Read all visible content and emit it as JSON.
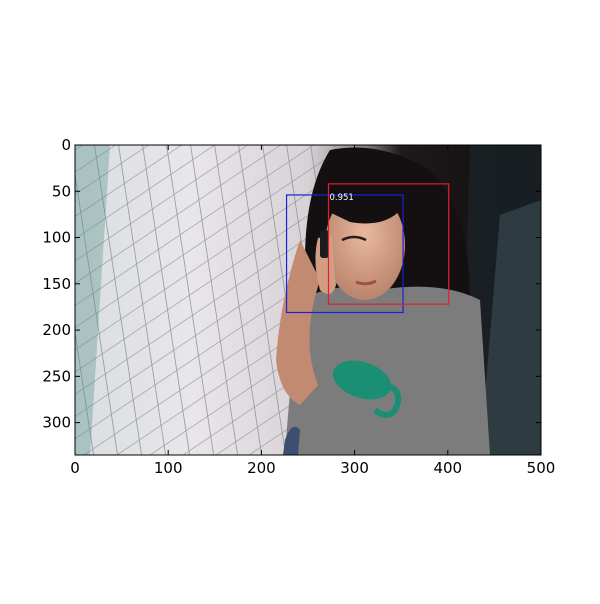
{
  "chart_data": {
    "type": "image_detection",
    "title": "",
    "xlabel": "",
    "ylabel": "",
    "xlim": [
      0,
      500
    ],
    "ylim": [
      335,
      0
    ],
    "xticks": [
      0,
      100,
      200,
      300,
      400,
      500
    ],
    "yticks": [
      0,
      50,
      100,
      150,
      200,
      250,
      300
    ],
    "boxes": [
      {
        "name": "detection-box-blue",
        "color": "#1f1fd6",
        "x0": 227,
        "y0": 54,
        "x1": 352,
        "y1": 181,
        "label": ""
      },
      {
        "name": "detection-box-red",
        "color": "#e0202a",
        "x0": 272,
        "y0": 42,
        "x1": 401,
        "y1": 172,
        "label": "0.951"
      }
    ]
  }
}
